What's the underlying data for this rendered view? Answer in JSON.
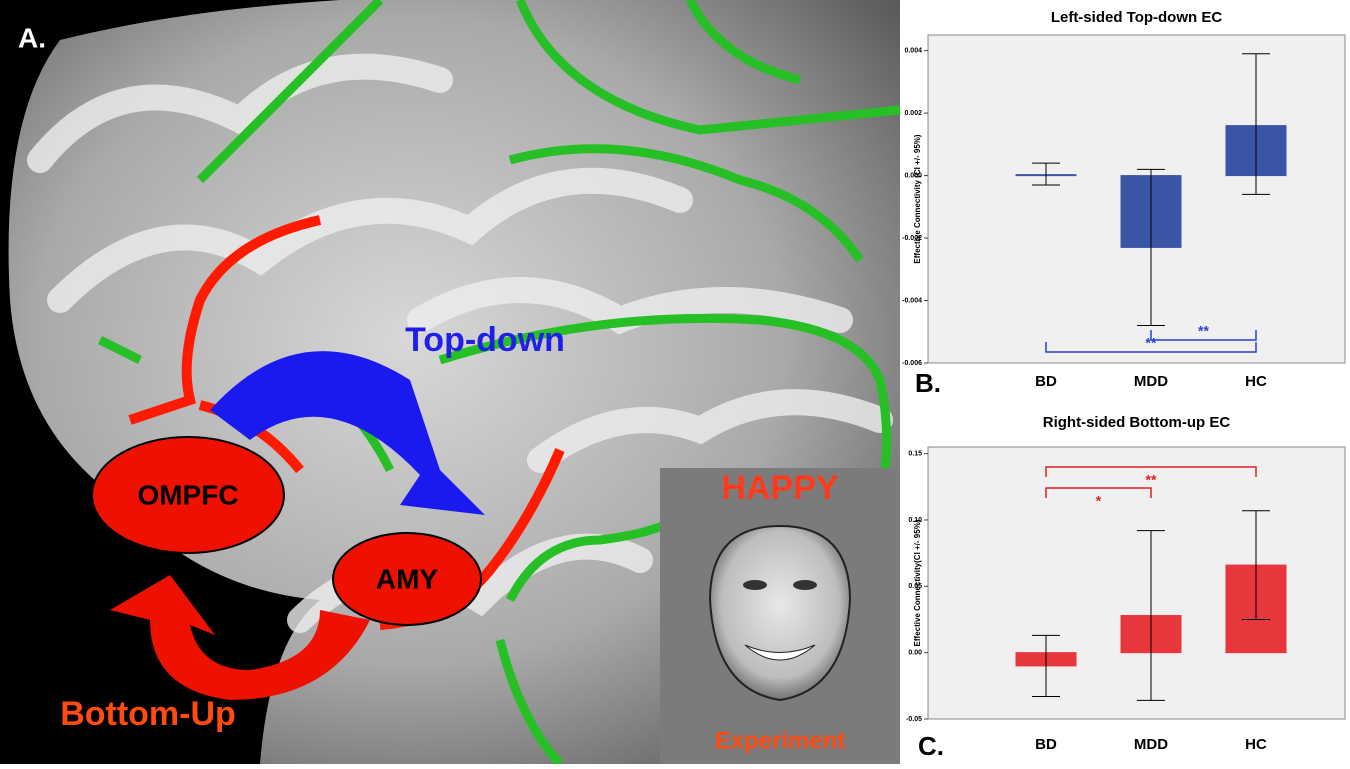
{
  "brain_panel": {
    "panel_label": "A.",
    "top_down": "Top-down",
    "ompfc": "OMPFC",
    "amy": "AMY",
    "bottom_up": "Bottom-Up",
    "emotion": "HAPPY",
    "task": "Experiment"
  },
  "chart_data": [
    {
      "type": "bar",
      "panel_label": "B.",
      "title": "Left-sided Top-down EC",
      "y_label": "Effective Connectivity (CI +/- 95%)",
      "categories": [
        "BD",
        "MDD",
        "HC"
      ],
      "values": [
        3e-05,
        -0.0023,
        0.0016
      ],
      "ci_low": [
        -0.0003,
        -0.0048,
        -0.0006
      ],
      "ci_high": [
        0.0004,
        0.0002,
        0.0039
      ],
      "color": "#3a55a5",
      "annotation_color": "#2b3fd6",
      "ylim": [
        -0.006,
        0.0045
      ],
      "yticks": [
        -0.006,
        -0.004,
        -0.002,
        {
          "value": 0,
          "label": "0.000"
        },
        0.002,
        0.004
      ],
      "significance": [
        {
          "pair": [
            1,
            2
          ],
          "label": "**"
        },
        {
          "pair": [
            0,
            2
          ],
          "label": "**"
        }
      ]
    },
    {
      "type": "bar",
      "panel_label": "C.",
      "title": "Right-sided Bottom-up EC",
      "y_label": "Effective Connectivity(CI +/- 95%)",
      "categories": [
        "BD",
        "MDD",
        "HC"
      ],
      "values": [
        -0.01,
        0.028,
        0.066
      ],
      "ci_low": [
        -0.033,
        -0.036,
        0.025
      ],
      "ci_high": [
        0.013,
        0.092,
        0.107
      ],
      "color": "#e8363d",
      "annotation_color": "#e02020",
      "ylim": [
        -0.05,
        0.155
      ],
      "yticks": [
        -0.05,
        {
          "value": 0,
          "label": "0.00"
        },
        0.05,
        {
          "value": 0.1,
          "label": "0.10"
        },
        0.15
      ],
      "significance": [
        {
          "pair": [
            0,
            2
          ],
          "label": "**"
        },
        {
          "pair": [
            0,
            1
          ],
          "label": "*"
        }
      ]
    }
  ]
}
